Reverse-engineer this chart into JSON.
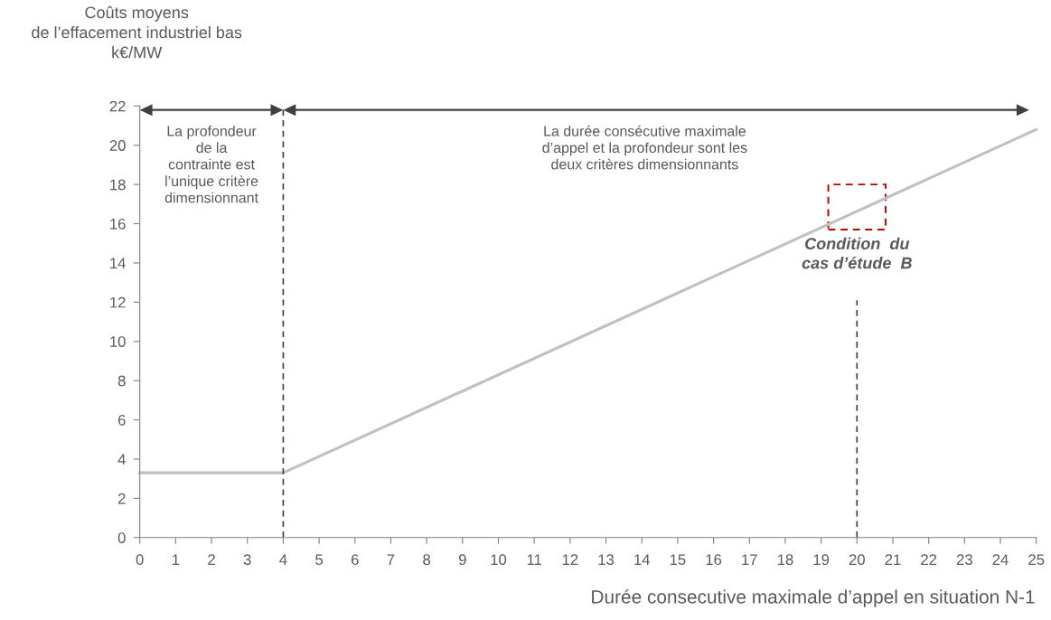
{
  "chart_data": {
    "type": "line",
    "ylabel": "Coûts moyens\nde l’effacement industriel bas\nk€/MW",
    "xlabel": "Durée consecutive maximale d’appel en situation N-1",
    "x": [
      0,
      4,
      25
    ],
    "series": [
      {
        "color": "#c0c0c0",
        "values": [
          3.3,
          3.3,
          20.8
        ]
      }
    ],
    "xlim": [
      0,
      25
    ],
    "xticks": [
      0,
      1,
      2,
      3,
      4,
      5,
      6,
      7,
      8,
      9,
      10,
      11,
      12,
      13,
      14,
      15,
      16,
      17,
      18,
      19,
      20,
      21,
      22,
      23,
      24,
      25
    ],
    "ylim": [
      0,
      22
    ],
    "yticks": [
      0,
      2,
      4,
      6,
      8,
      10,
      12,
      14,
      16,
      18,
      20,
      22
    ],
    "grid": false,
    "legend": false,
    "marker": "none",
    "line_style": "solid",
    "ref_lines": [
      {
        "axis": "x",
        "value": 4,
        "color": "#404040",
        "line_style": "dashed"
      },
      {
        "axis": "x",
        "value": 20,
        "color": "#404040",
        "line_style": "dashed"
      }
    ],
    "annotations": [
      "La profondeur\nde la\ncontrainte est\nl’unique critère\ndimensionnant",
      "La durée consécutive maximale\nd’appel et la profondeur sont les\ndeux critères dimensionnants",
      {
        "text": "Condition  du\ncas d’étude  B",
        "x": 20,
        "y": 16.6
      }
    ]
  }
}
